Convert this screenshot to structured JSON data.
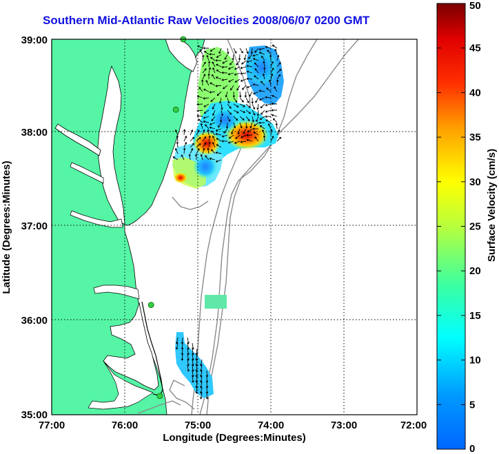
{
  "title": "Southern Mid-Atlantic Raw Velocities 2008/06/07 0200 GMT",
  "xlabel": "Longitude (Degrees:Minutes)",
  "ylabel": "Latitude (Degrees:Minutes)",
  "x_ticks": [
    "77:00",
    "76:00",
    "75:00",
    "74:00",
    "73:00",
    "72:00"
  ],
  "y_ticks": [
    "39:00",
    "38:00",
    "37:00",
    "36:00",
    "35:00"
  ],
  "colorbar": {
    "label": "Surface Velocity (cm/s)",
    "ticks": [
      "0",
      "5",
      "10",
      "15",
      "20",
      "25",
      "30",
      "35",
      "40",
      "45",
      "50"
    ],
    "min": 0,
    "max": 50,
    "colormap": "jet"
  },
  "colors": {
    "land": "#55f5a5",
    "title": "#1010e0",
    "station_marker": "#30d040",
    "isobath": "#8a8a8a"
  },
  "stations": [
    {
      "lon": -75.2,
      "lat": 39.0
    },
    {
      "lon": -75.3,
      "lat": 38.25
    },
    {
      "lon": -75.64,
      "lat": 36.17
    },
    {
      "lon": -75.52,
      "lat": 35.2
    }
  ]
}
